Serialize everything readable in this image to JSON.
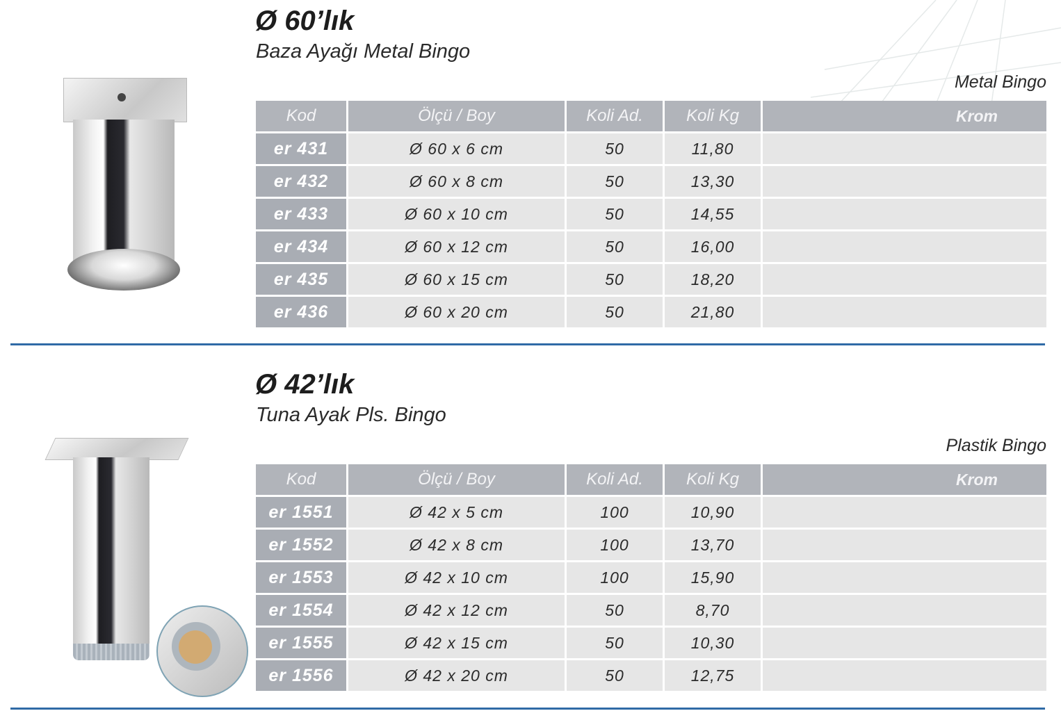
{
  "colors": {
    "header_bg": "#b1b4ba",
    "code_bg": "#a9adb4",
    "row_bg": "#e6e6e6",
    "divider": "#2f6aa6",
    "felt": "#d2aa72"
  },
  "sections": [
    {
      "title": "Ø 60’lık",
      "subtitle": "Baza Ayağı Metal Bingo",
      "material": "Metal Bingo",
      "headers": [
        "Kod",
        "Ölçü / Boy",
        "Koli Ad.",
        "Koli Kg",
        "Krom"
      ],
      "rows": [
        {
          "kod": "er 431",
          "olcu": "Ø 60 x 6 cm",
          "koli_ad": "50",
          "koli_kg": "11,80",
          "krom": ""
        },
        {
          "kod": "er 432",
          "olcu": "Ø 60 x 8 cm",
          "koli_ad": "50",
          "koli_kg": "13,30",
          "krom": ""
        },
        {
          "kod": "er 433",
          "olcu": "Ø 60 x 10 cm",
          "koli_ad": "50",
          "koli_kg": "14,55",
          "krom": ""
        },
        {
          "kod": "er 434",
          "olcu": "Ø 60 x 12 cm",
          "koli_ad": "50",
          "koli_kg": "16,00",
          "krom": ""
        },
        {
          "kod": "er 435",
          "olcu": "Ø 60 x 15 cm",
          "koli_ad": "50",
          "koli_kg": "18,20",
          "krom": ""
        },
        {
          "kod": "er 436",
          "olcu": "Ø 60 x 20 cm",
          "koli_ad": "50",
          "koli_kg": "21,80",
          "krom": ""
        }
      ]
    },
    {
      "title": "Ø 42’lık",
      "subtitle": "Tuna Ayak Pls. Bingo",
      "material": "Plastik Bingo",
      "headers": [
        "Kod",
        "Ölçü / Boy",
        "Koli Ad.",
        "Koli Kg",
        "Krom"
      ],
      "rows": [
        {
          "kod": "er 1551",
          "olcu": "Ø 42 x 5 cm",
          "koli_ad": "100",
          "koli_kg": "10,90",
          "krom": ""
        },
        {
          "kod": "er 1552",
          "olcu": "Ø 42 x 8 cm",
          "koli_ad": "100",
          "koli_kg": "13,70",
          "krom": ""
        },
        {
          "kod": "er 1553",
          "olcu": "Ø 42 x 10 cm",
          "koli_ad": "100",
          "koli_kg": "15,90",
          "krom": ""
        },
        {
          "kod": "er 1554",
          "olcu": "Ø 42 x 12 cm",
          "koli_ad": "50",
          "koli_kg": "8,70",
          "krom": ""
        },
        {
          "kod": "er 1555",
          "olcu": "Ø 42 x 15 cm",
          "koli_ad": "50",
          "koli_kg": "10,30",
          "krom": ""
        },
        {
          "kod": "er 1556",
          "olcu": "Ø 42 x 20 cm",
          "koli_ad": "50",
          "koli_kg": "12,75",
          "krom": ""
        }
      ]
    }
  ]
}
